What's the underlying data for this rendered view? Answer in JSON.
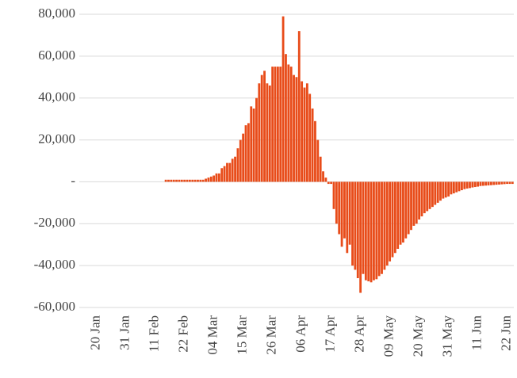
{
  "chart_data": {
    "type": "bar",
    "color": "#e84c1a",
    "grid": true,
    "ylim": [
      -60000,
      80000
    ],
    "yticks": [
      {
        "value": 80000,
        "label": "80,000"
      },
      {
        "value": 60000,
        "label": "60,000"
      },
      {
        "value": 40000,
        "label": "40,000"
      },
      {
        "value": 20000,
        "label": "20,000"
      },
      {
        "value": 0,
        "label": "-"
      },
      {
        "value": -20000,
        "label": "-20,000"
      },
      {
        "value": -40000,
        "label": "-40,000"
      },
      {
        "value": -60000,
        "label": "-60,000"
      }
    ],
    "categories": [
      "20 Jan",
      null,
      null,
      null,
      null,
      null,
      null,
      null,
      null,
      null,
      null,
      "31 Jan",
      null,
      null,
      null,
      null,
      null,
      null,
      null,
      null,
      null,
      null,
      "11 Feb",
      null,
      null,
      null,
      null,
      null,
      null,
      null,
      null,
      null,
      null,
      "22 Feb",
      null,
      null,
      null,
      null,
      null,
      null,
      null,
      null,
      null,
      null,
      "04 Mar",
      null,
      null,
      null,
      null,
      null,
      null,
      null,
      null,
      null,
      null,
      "15 Mar",
      null,
      null,
      null,
      null,
      null,
      null,
      null,
      null,
      null,
      null,
      "26 Mar",
      null,
      null,
      null,
      null,
      null,
      null,
      null,
      null,
      null,
      null,
      "06 Apr",
      null,
      null,
      null,
      null,
      null,
      null,
      null,
      null,
      null,
      null,
      "17 Apr",
      null,
      null,
      null,
      null,
      null,
      null,
      null,
      null,
      null,
      null,
      "28 Apr",
      null,
      null,
      null,
      null,
      null,
      null,
      null,
      null,
      null,
      null,
      "09 May",
      null,
      null,
      null,
      null,
      null,
      null,
      null,
      null,
      null,
      null,
      "20 May",
      null,
      null,
      null,
      null,
      null,
      null,
      null,
      null,
      null,
      null,
      "31 May",
      null,
      null,
      null,
      null,
      null,
      null,
      null,
      null,
      null,
      null,
      "11 Jun",
      null,
      null,
      null,
      null,
      null,
      null,
      null,
      null,
      null,
      null,
      "22 Jun",
      null,
      null
    ],
    "values": [
      0,
      0,
      0,
      0,
      0,
      0,
      0,
      0,
      0,
      0,
      0,
      0,
      0,
      0,
      0,
      0,
      0,
      0,
      0,
      0,
      0,
      0,
      0,
      0,
      0,
      0,
      1000,
      1000,
      1000,
      1000,
      1000,
      1000,
      1000,
      1000,
      1000,
      1000,
      1000,
      1000,
      1000,
      1000,
      1000,
      1500,
      2000,
      2500,
      3000,
      4000,
      4000,
      6500,
      7500,
      9000,
      9000,
      11000,
      12000,
      16000,
      20000,
      23000,
      27000,
      28000,
      36000,
      35000,
      40000,
      47000,
      51000,
      53000,
      47000,
      46000,
      55000,
      55000,
      55000,
      55000,
      79000,
      61000,
      56000,
      55000,
      51000,
      50000,
      72000,
      48000,
      45000,
      47000,
      42000,
      35000,
      29000,
      20000,
      12000,
      5000,
      2000,
      -1000,
      -1000,
      -13000,
      -20000,
      -25000,
      -31000,
      -27000,
      -34000,
      -30000,
      -40000,
      -42000,
      -46000,
      -53000,
      -44000,
      -47000,
      -47500,
      -48000,
      -47000,
      -46500,
      -45000,
      -44000,
      -42000,
      -40000,
      -38000,
      -36000,
      -34000,
      -32000,
      -30000,
      -29000,
      -27000,
      -25000,
      -23000,
      -21000,
      -20000,
      -18000,
      -16500,
      -15000,
      -14000,
      -13000,
      -12000,
      -11000,
      -10000,
      -9000,
      -8000,
      -7500,
      -7000,
      -6000,
      -5500,
      -5000,
      -4500,
      -4000,
      -3500,
      -3200,
      -3000,
      -2700,
      -2500,
      -2300,
      -2000,
      -1900,
      -1800,
      -1700,
      -1600,
      -1500,
      -1400,
      -1300,
      -1200,
      -1100,
      -1000,
      -1000,
      -1000
    ]
  }
}
